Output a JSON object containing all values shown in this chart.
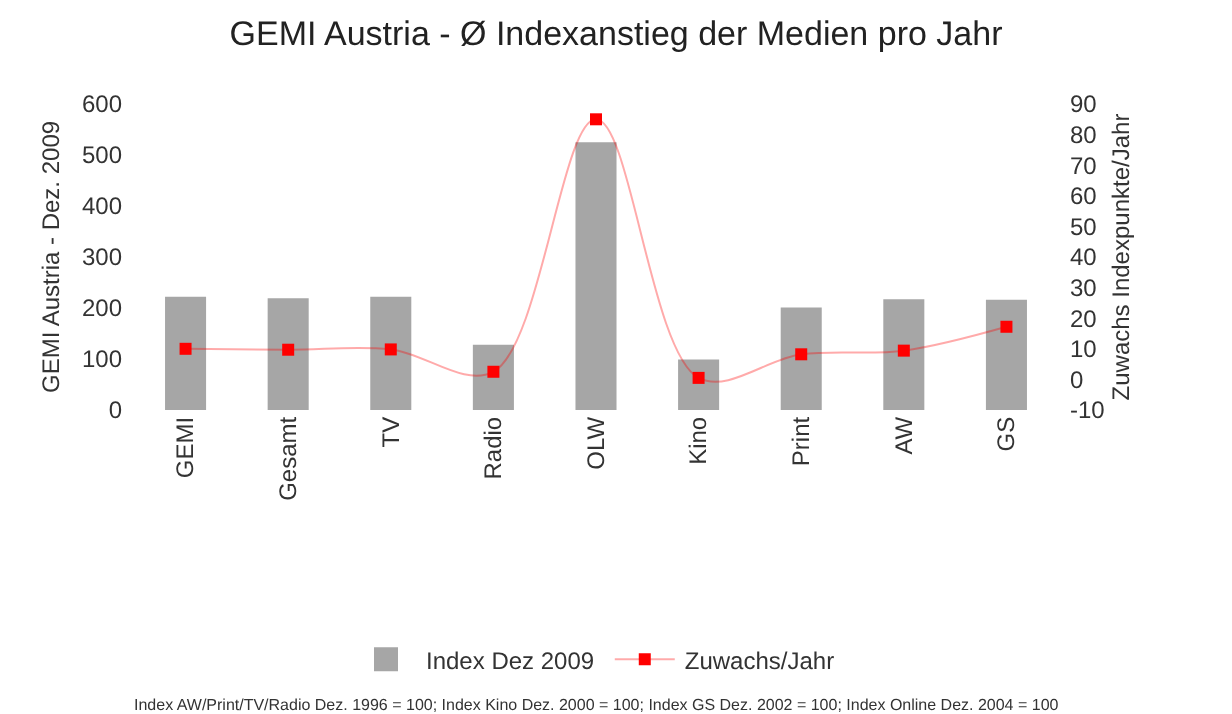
{
  "chart_data": {
    "type": "bar",
    "title": "GEMI Austria - Ø Indexanstieg der Medien pro Jahr",
    "ylabel": "GEMI Austria - Dez. 2009",
    "y2label": "Zuwachs Indexpunkte/Jahr",
    "categories": [
      "GEMI",
      "Gesamt",
      "TV",
      "Radio",
      "OLW",
      "Kino",
      "Print",
      "AW",
      "GS"
    ],
    "series": [
      {
        "name": "Index Dez 2009",
        "color": "#a6a6a6",
        "values": [
          222,
          219,
          222,
          128,
          525,
          99,
          201,
          217,
          216
        ]
      },
      {
        "name": "Zuwachs/Jahr",
        "type": "line",
        "axis": "y2",
        "color": "#ff0000",
        "values": [
          10,
          9.7,
          9.8,
          2.5,
          85,
          0.5,
          8.2,
          9.4,
          17.2
        ]
      }
    ],
    "ylim": [
      0,
      600
    ],
    "yticks": [
      0,
      100,
      200,
      300,
      400,
      500,
      600
    ],
    "y2lim": [
      -10,
      90
    ],
    "y2ticks": [
      -10,
      0,
      10,
      20,
      30,
      40,
      50,
      60,
      70,
      80,
      90
    ],
    "grid": false,
    "legend": "bottom",
    "marker": "square",
    "annotations": [
      "Index AW/Print/TV/Radio Dez. 1996 = 100; Index Kino Dez. 2000 = 100; Index GS Dez. 2002 = 100; Index Online Dez. 2004 = 100"
    ]
  }
}
